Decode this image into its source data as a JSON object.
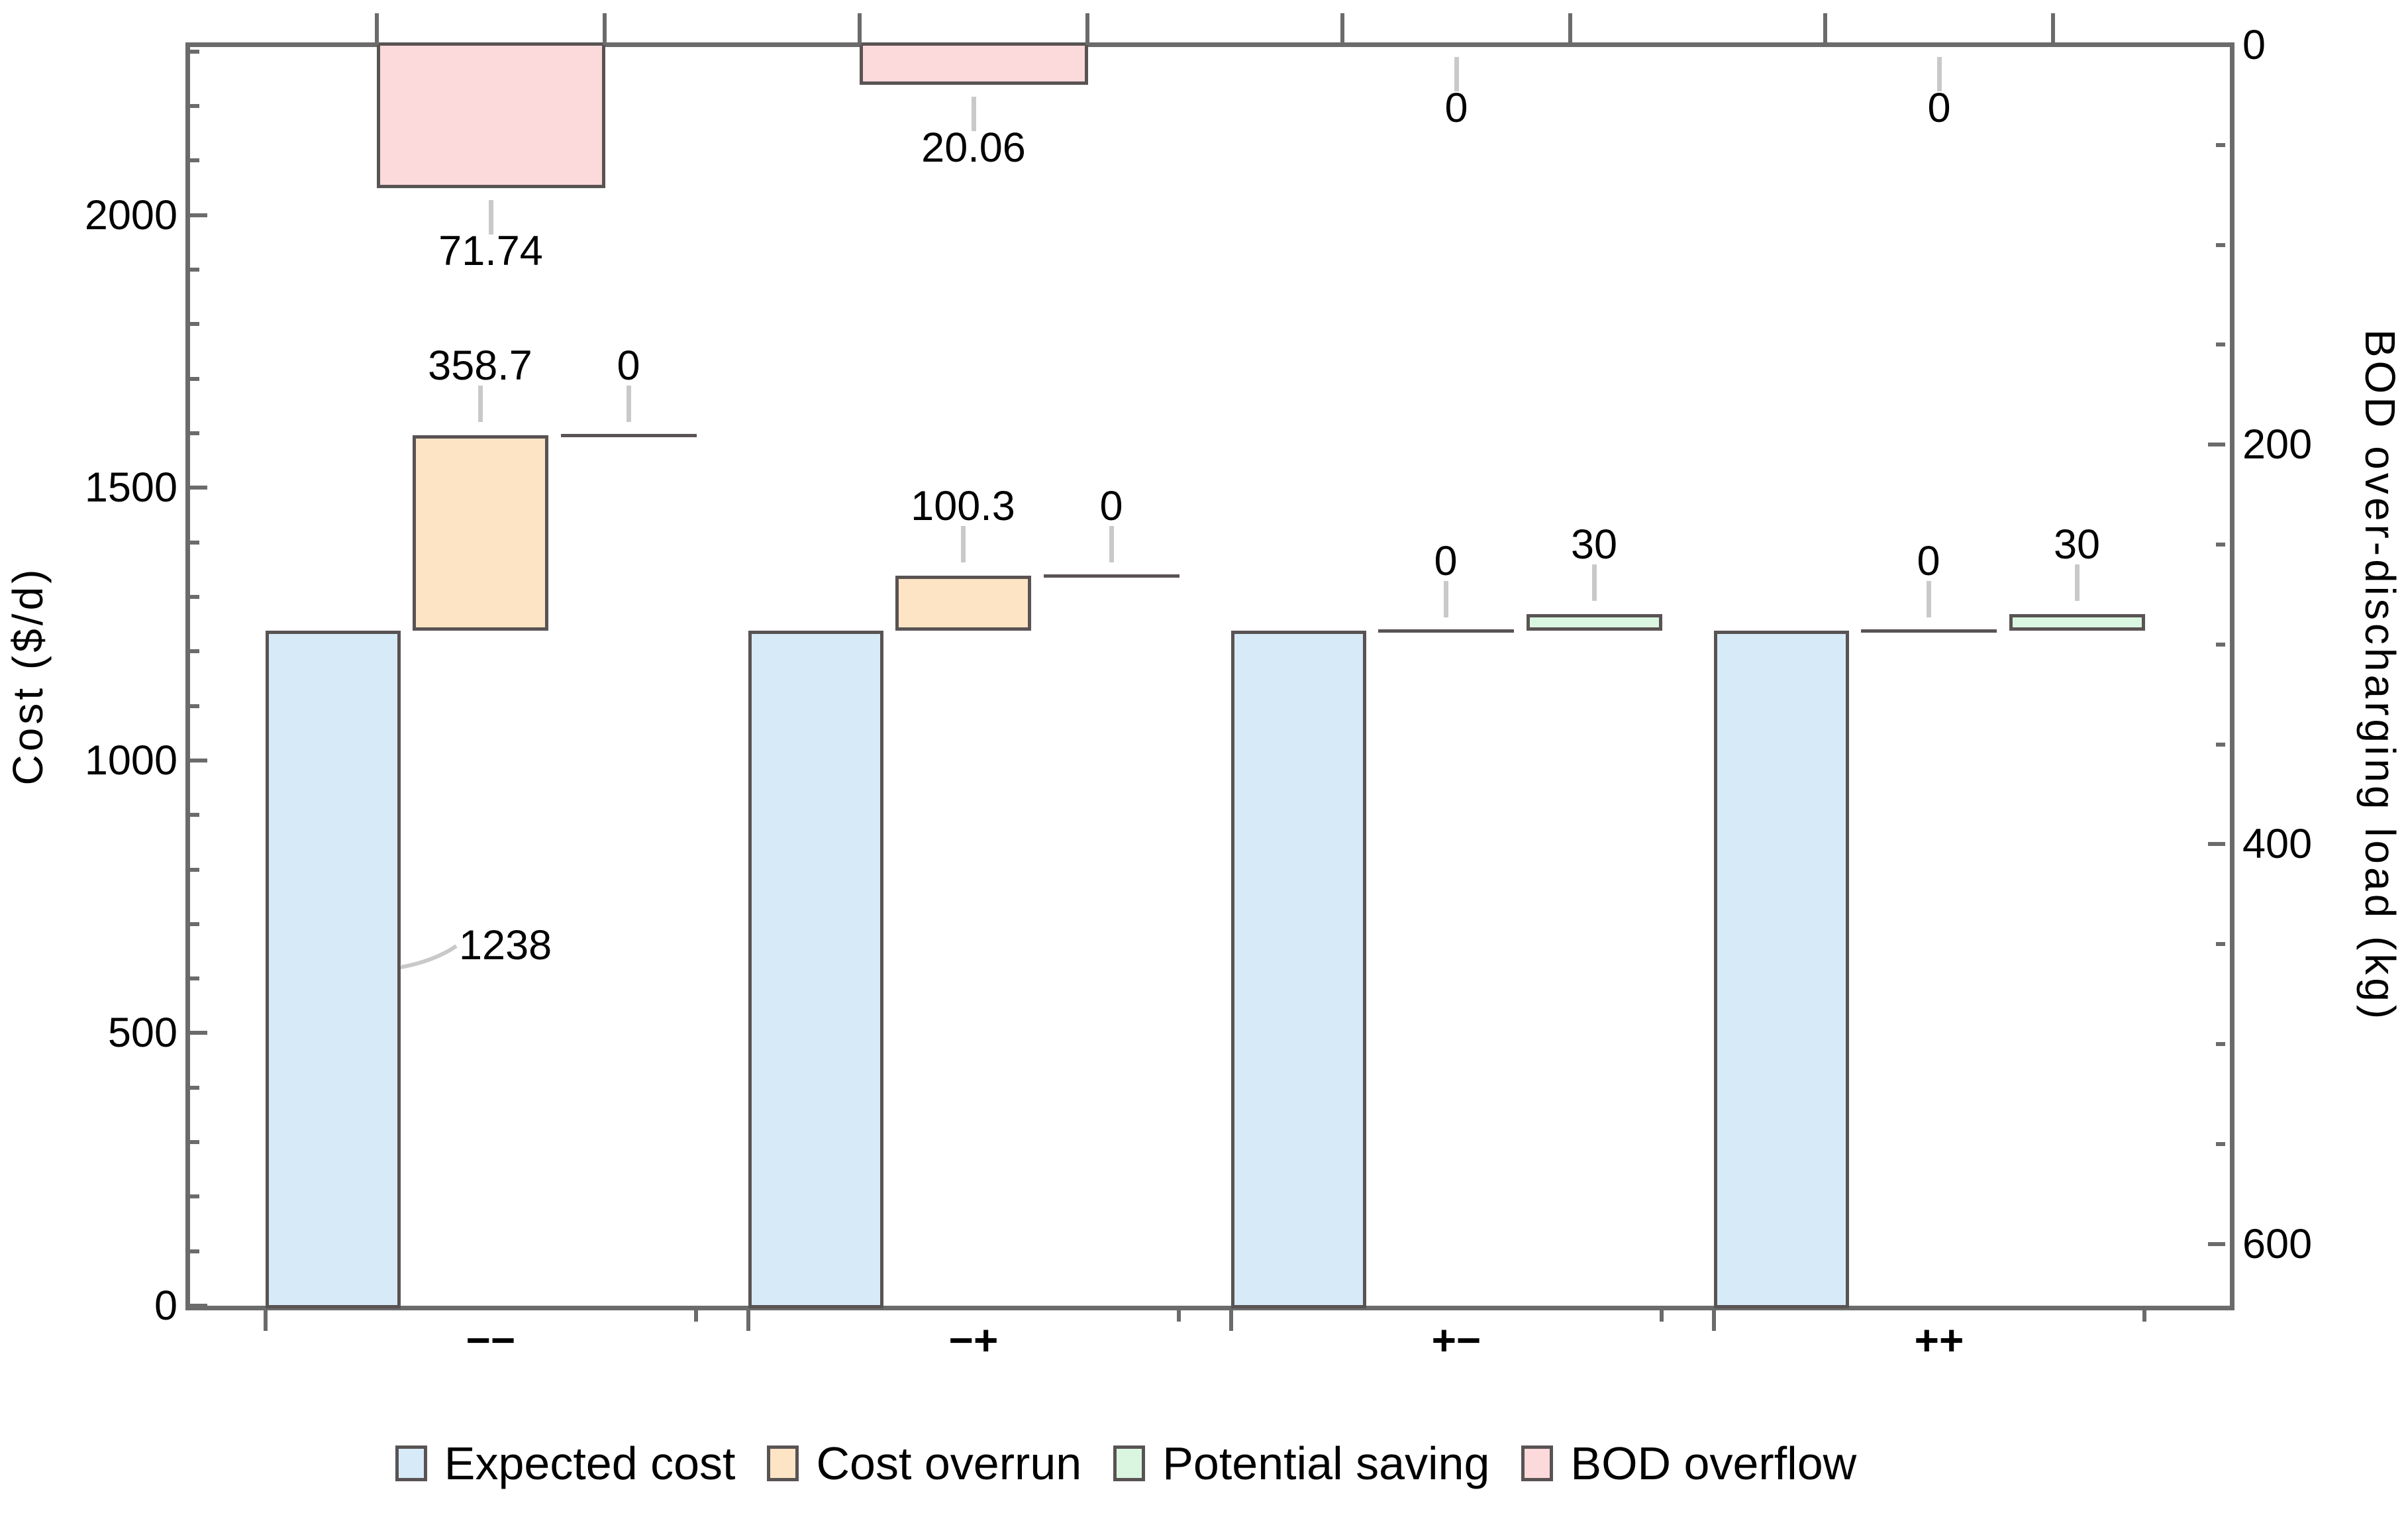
{
  "figure": {
    "left_axis": {
      "title": "Cost ($/d)",
      "major_ticks": [
        0,
        500,
        1000,
        1500,
        2000
      ],
      "minor_step": 100,
      "range": [
        0,
        2312
      ]
    },
    "right_axis": {
      "title": "BOD over-discharging load (kg)",
      "major_ticks": [
        0,
        200,
        400,
        600
      ],
      "minor_step": 50,
      "range": [
        0,
        631
      ],
      "inverted": true
    },
    "x_axis": {
      "categories": [
        "−−",
        "−+",
        "+−",
        "++"
      ]
    }
  },
  "legend": {
    "items": [
      {
        "label": "Expected cost",
        "color": "#d7eaf8"
      },
      {
        "label": "Cost overrun",
        "color": "#fde4c5"
      },
      {
        "label": "Potential saving",
        "color": "#daf6e1"
      },
      {
        "label": "BOD overflow",
        "color": "#fcd9db"
      }
    ]
  },
  "colors": {
    "bar_border": "#595353",
    "frame": "#6b6b6b",
    "leader_line": "#c9c9c9",
    "expected_cost": "#d7eaf8",
    "cost_overrun": "#fde4c5",
    "potential_saving": "#daf6e1",
    "bod_overflow": "#fcd9db"
  },
  "chart_data": {
    "type": "bar",
    "categories": [
      "−−",
      "−+",
      "+−",
      "++"
    ],
    "series": [
      {
        "name": "Expected cost",
        "axis": "left",
        "stack": "cost",
        "color": "#d7eaf8",
        "values": [
          1238,
          1238,
          1238,
          1238
        ],
        "value_labels": [
          "1238",
          "",
          "",
          ""
        ]
      },
      {
        "name": "Cost overrun",
        "axis": "left",
        "stack": "cost",
        "color": "#fde4c5",
        "values": [
          358.7,
          100.3,
          0,
          0
        ],
        "value_labels": [
          "358.7",
          "100.3",
          "0",
          "0"
        ]
      },
      {
        "name": "Potential saving",
        "axis": "left",
        "stack": "cost",
        "color": "#daf6e1",
        "values": [
          0,
          0,
          30,
          30
        ],
        "value_labels": [
          "0",
          "0",
          "30",
          "30"
        ]
      },
      {
        "name": "BOD overflow",
        "axis": "right",
        "stack": "bod",
        "color": "#fcd9db",
        "values": [
          71.74,
          20.06,
          0,
          0
        ],
        "value_labels": [
          "71.74",
          "20.06",
          "0",
          "0"
        ]
      }
    ],
    "annotation": {
      "series": "Expected cost",
      "category_index": 0,
      "text": "1238"
    },
    "title": "",
    "xlabel": "",
    "left_ylabel": "Cost ($/d)",
    "right_ylabel": "BOD over-discharging load (kg)",
    "left_ylim": [
      0,
      2312
    ],
    "right_ylim": [
      0,
      631
    ],
    "grid": false,
    "legend_position": "bottom"
  }
}
